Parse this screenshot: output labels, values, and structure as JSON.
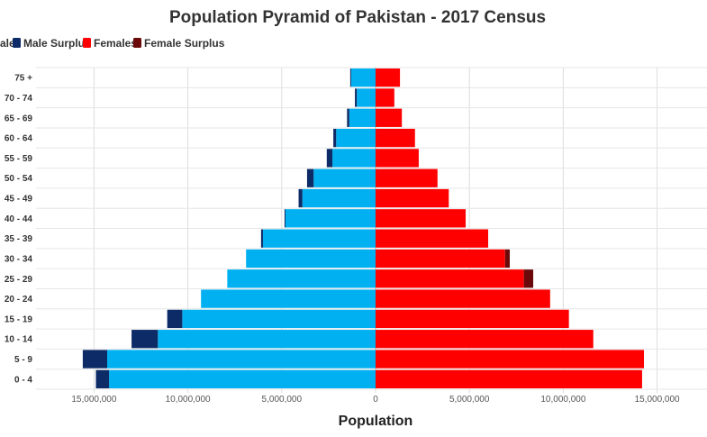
{
  "chart_data": {
    "type": "bar",
    "orientation": "horizontal-pyramid",
    "title": "Population Pyramid of Pakistan - 2017 Census",
    "xlabel": "Population",
    "ylabel": "",
    "xlim": [
      -18000000,
      17000000
    ],
    "x_ticks": [
      -15000000,
      -10000000,
      -5000000,
      0,
      5000000,
      10000000,
      15000000
    ],
    "x_tick_labels": [
      "15,000,000",
      "10,000,000",
      "5,000,000",
      "0",
      "5,000,000",
      "10,000,000",
      "15,000,000"
    ],
    "grid": "vertical",
    "legend_position": "top-left",
    "categories": [
      "0 - 4",
      "5 - 9",
      "10 - 14",
      "15 - 19",
      "20 - 24",
      "25 - 29",
      "30 - 34",
      "35 - 39",
      "40 - 44",
      "45 - 49",
      "50 - 54",
      "55 - 59",
      "60 - 64",
      "65 - 69",
      "70 - 74",
      "75 +"
    ],
    "series": [
      {
        "name": "Males",
        "color": "#00b0f0",
        "values": [
          14200000,
          14300000,
          11600000,
          10300000,
          9300000,
          7900000,
          6900000,
          6000000,
          4800000,
          3900000,
          3300000,
          2300000,
          2100000,
          1400000,
          1000000,
          1300000
        ]
      },
      {
        "name": "Male Surplus",
        "color": "#0d2b66",
        "values": [
          700000,
          1300000,
          1400000,
          800000,
          0,
          0,
          0,
          100000,
          50000,
          200000,
          350000,
          300000,
          150000,
          120000,
          100000,
          50000
        ]
      },
      {
        "name": "Females",
        "color": "#ff0000",
        "values": [
          14200000,
          14300000,
          11600000,
          10300000,
          9300000,
          7900000,
          6900000,
          6000000,
          4800000,
          3900000,
          3300000,
          2300000,
          2100000,
          1400000,
          1000000,
          1300000
        ]
      },
      {
        "name": "Female Surplus",
        "color": "#6b0a0a",
        "values": [
          0,
          0,
          0,
          0,
          0,
          500000,
          250000,
          0,
          0,
          0,
          0,
          0,
          0,
          0,
          0,
          0
        ]
      }
    ]
  },
  "legend": {
    "items": [
      {
        "label": "Males",
        "color": "#00b0f0"
      },
      {
        "label": "Male Surplus",
        "color": "#0d2b66"
      },
      {
        "label": "Females",
        "color": "#ff0000"
      },
      {
        "label": "Female Surplus",
        "color": "#6b0a0a"
      }
    ]
  }
}
